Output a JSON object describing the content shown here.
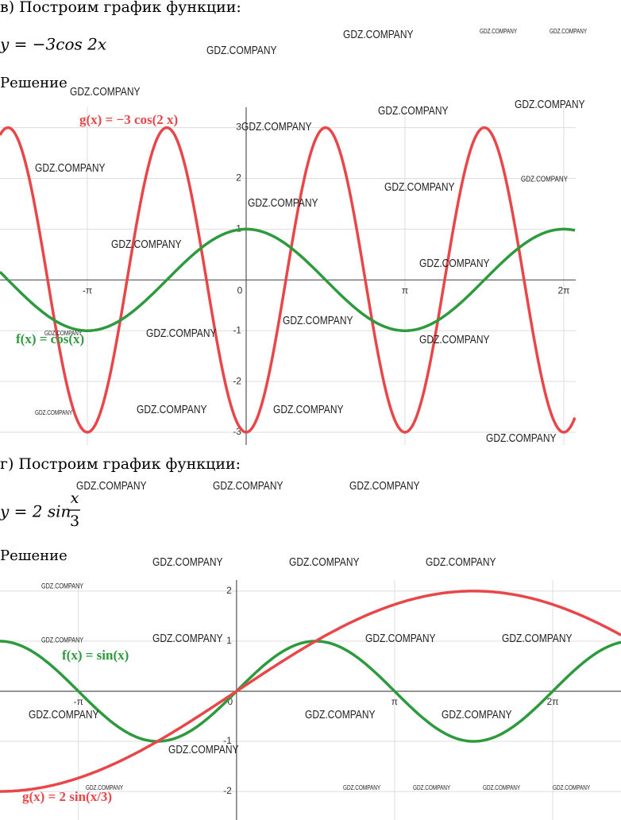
{
  "watermark": "GDZ.COMPANY",
  "sections": [
    {
      "heading": "в) Построим график функции:",
      "formula": "y = −3cos 2x",
      "solution_label": "Решение",
      "graph": {
        "xlim": [
          -4.87,
          6.52
        ],
        "ylim": [
          -3.25,
          3.4
        ],
        "xticks": [
          {
            "value": -3.1416,
            "label": "-π"
          },
          0,
          {
            "value": 3.1416,
            "label": "π"
          },
          {
            "value": 6.2832,
            "label": "2π"
          }
        ],
        "yticks": [
          -3,
          -2,
          -1,
          1,
          2,
          3
        ],
        "functions": [
          {
            "label": "g(x) = −3 cos(2 x)",
            "kind": "cos",
            "amplitude": -3,
            "angular_frequency": 2,
            "color": "#e8474a"
          },
          {
            "label": "f(x) = cos(x)",
            "kind": "cos",
            "amplitude": 1,
            "angular_frequency": 1,
            "color": "#2e9a3e"
          }
        ]
      }
    },
    {
      "heading": "г) Построим график функции:",
      "formula": "y = 2 sin",
      "formula_fraction": {
        "numerator": "x",
        "denominator": "3"
      },
      "solution_label": "Решение",
      "graph": {
        "xlim": [
          -4.7,
          7.64
        ],
        "ylim": [
          -2.57,
          2.22
        ],
        "xticks": [
          {
            "value": -3.1416,
            "label": "-π"
          },
          0,
          {
            "value": 3.1416,
            "label": "π"
          },
          {
            "value": 6.2832,
            "label": "2π"
          }
        ],
        "yticks": [
          -2,
          -1,
          1,
          2
        ],
        "functions": [
          {
            "label": "f(x) = sin(x)",
            "kind": "sin",
            "amplitude": 1,
            "angular_frequency": 1,
            "color": "#2e9a3e"
          },
          {
            "label": "g(x) = 2 sin(x/3)",
            "kind": "sin",
            "amplitude": 2,
            "angular_frequency": 0.3333,
            "color": "#e8474a"
          }
        ]
      }
    }
  ]
}
